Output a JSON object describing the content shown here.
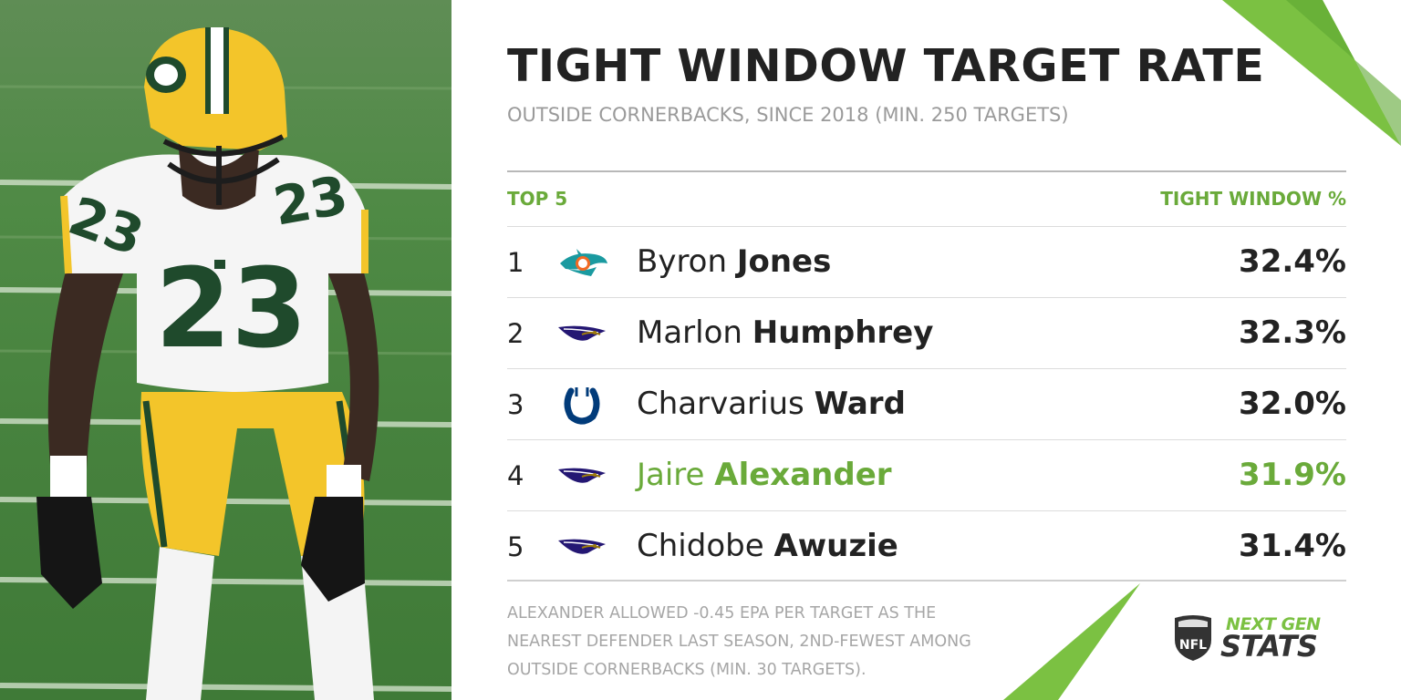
{
  "header": {
    "title": "TIGHT WINDOW TARGET RATE",
    "subtitle": "OUTSIDE CORNERBACKS, SINCE 2018 (MIN. 250 TARGETS)"
  },
  "table": {
    "left_header": "TOP 5",
    "right_header": "TIGHT WINDOW %",
    "rows": [
      {
        "rank": "1",
        "first": "Byron",
        "last": "Jones",
        "pct": "32.4%",
        "team_icon": "dolphins-logo-icon",
        "highlight": false
      },
      {
        "rank": "2",
        "first": "Marlon",
        "last": "Humphrey",
        "pct": "32.3%",
        "team_icon": "ravens-logo-icon",
        "highlight": false
      },
      {
        "rank": "3",
        "first": "Charvarius",
        "last": "Ward",
        "pct": "32.0%",
        "team_icon": "colts-logo-icon",
        "highlight": false
      },
      {
        "rank": "4",
        "first": "Jaire",
        "last": "Alexander",
        "pct": "31.9%",
        "team_icon": "ravens-logo-icon",
        "highlight": true
      },
      {
        "rank": "5",
        "first": "Chidobe",
        "last": "Awuzie",
        "pct": "31.4%",
        "team_icon": "ravens-logo-icon",
        "highlight": false
      }
    ]
  },
  "footnote": "ALEXANDER ALLOWED -0.45 EPA PER TARGET AS THE NEAREST DEFENDER LAST SEASON, 2ND-FEWEST AMONG OUTSIDE CORNERBACKS (MIN. 30 TARGETS).",
  "branding": {
    "line1": "NEXT GEN",
    "line2": "STATS",
    "shield_text": "NFL"
  },
  "photo": {
    "jersey_number": "23"
  },
  "colors": {
    "accent_green": "#6aaa3a",
    "title": "#222222",
    "subtitle": "#9a9a9a",
    "deco_green": "#7bc142"
  }
}
